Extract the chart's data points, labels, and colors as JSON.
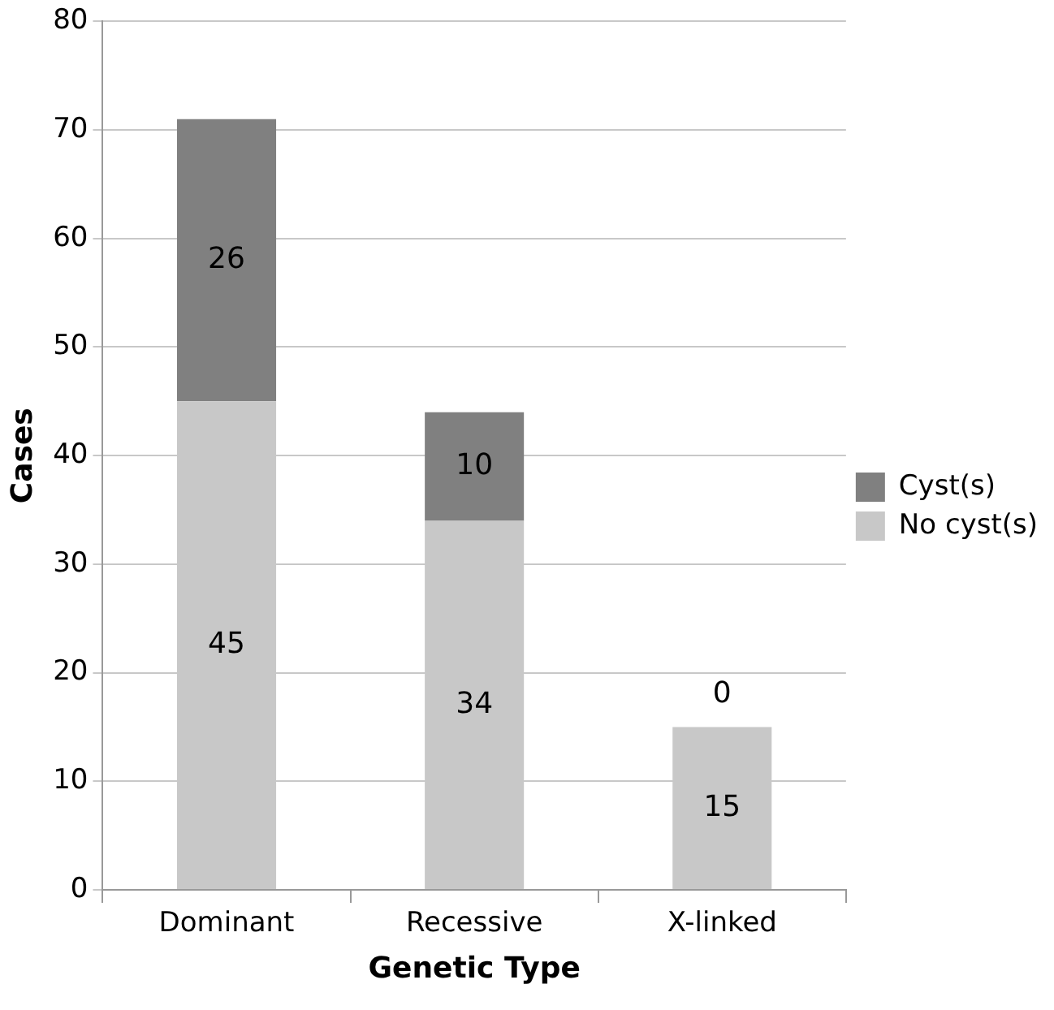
{
  "chart_data": {
    "type": "bar",
    "stacked": true,
    "xlabel": "Genetic Type",
    "ylabel": "Cases",
    "categories": [
      "Dominant",
      "Recessive",
      "X-linked"
    ],
    "series": [
      {
        "name": "No cyst(s)",
        "color": "#c8c8c8",
        "values": [
          45,
          34,
          15
        ]
      },
      {
        "name": "Cyst(s)",
        "color": "#808080",
        "values": [
          26,
          10,
          0
        ]
      }
    ],
    "ylim": [
      0,
      80
    ],
    "yticks": [
      0,
      10,
      20,
      30,
      40,
      50,
      60,
      70,
      80
    ],
    "grid": "y",
    "legend": "right",
    "data_labels": true
  }
}
